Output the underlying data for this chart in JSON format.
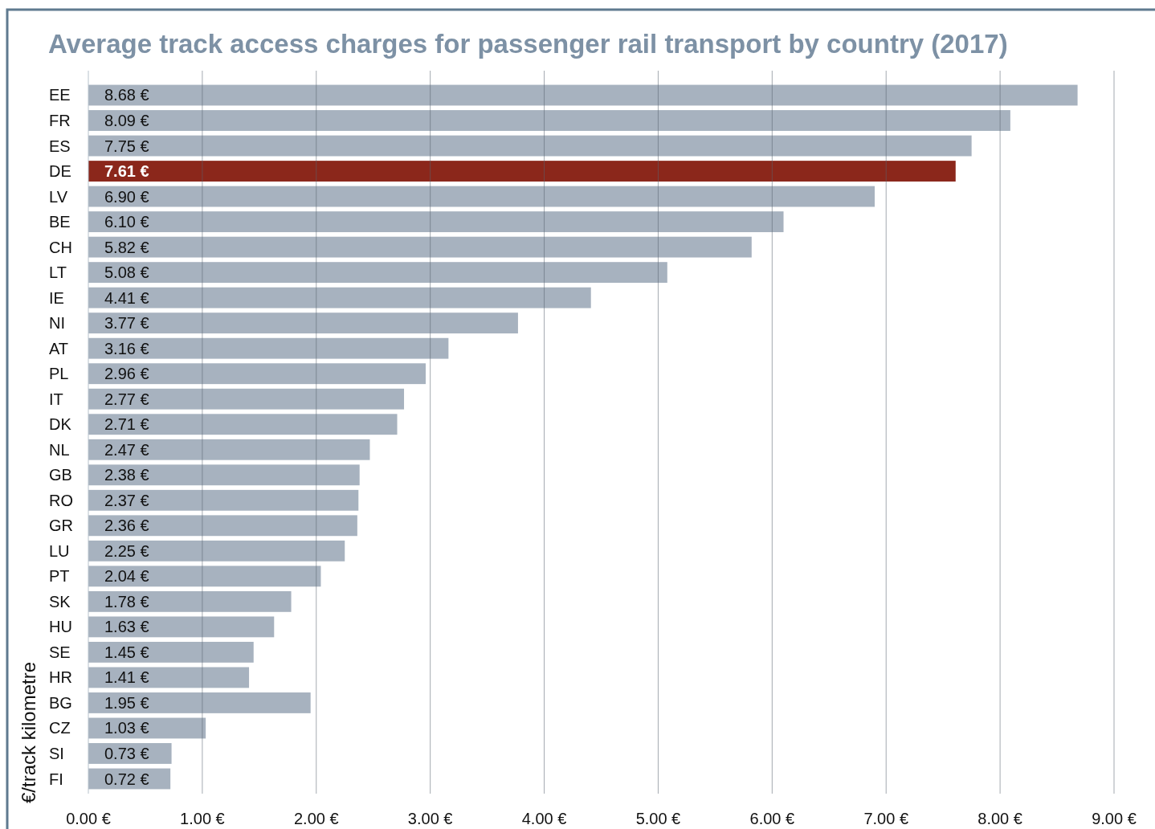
{
  "chart_data": {
    "type": "bar",
    "orientation": "horizontal",
    "title": "Average track access charges for passenger rail transport by country (2017)",
    "ylabel": "€/track kilometre",
    "categories": [
      "EE",
      "FR",
      "ES",
      "DE",
      "LV",
      "BE",
      "CH",
      "LT",
      "IE",
      "NI",
      "AT",
      "PL",
      "IT",
      "DK",
      "NL",
      "GB",
      "RO",
      "GR",
      "LU",
      "PT",
      "SK",
      "HU",
      "SE",
      "HR",
      "BG",
      "CZ",
      "SI",
      "FI"
    ],
    "values": [
      8.68,
      8.09,
      7.75,
      7.61,
      6.9,
      6.1,
      5.82,
      5.08,
      4.41,
      3.77,
      3.16,
      2.96,
      2.77,
      2.71,
      2.47,
      2.38,
      2.37,
      2.36,
      2.25,
      2.04,
      1.78,
      1.63,
      1.45,
      1.41,
      1.95,
      1.03,
      0.73,
      0.72
    ],
    "value_labels": [
      "8.68 €",
      "8.09 €",
      "7.75 €",
      "7.61 €",
      "6.90 €",
      "6.10 €",
      "5.82 €",
      "5.08 €",
      "4.41 €",
      "3.77 €",
      "3.16 €",
      "2.96 €",
      "2.77 €",
      "2.71 €",
      "2.47 €",
      "2.38 €",
      "2.37 €",
      "2.36 €",
      "2.25 €",
      "2.04 €",
      "1.78 €",
      "1.63 €",
      "1.45 €",
      "1.41 €",
      "1.95 €",
      "1.03 €",
      "0.73 €",
      "0.72 €"
    ],
    "colors": [
      "#a7b2bf",
      "#a7b2bf",
      "#a7b2bf",
      "#8b271b",
      "#a7b2bf",
      "#a7b2bf",
      "#a7b2bf",
      "#a7b2bf",
      "#a7b2bf",
      "#a7b2bf",
      "#a7b2bf",
      "#a7b2bf",
      "#a7b2bf",
      "#a7b2bf",
      "#a7b2bf",
      "#a7b2bf",
      "#a7b2bf",
      "#a7b2bf",
      "#a7b2bf",
      "#a7b2bf",
      "#a7b2bf",
      "#a7b2bf",
      "#a7b2bf",
      "#a7b2bf",
      "#a7b2bf",
      "#a7b2bf",
      "#a7b2bf",
      "#a7b2bf"
    ],
    "xlim": [
      0,
      9
    ],
    "xticks": [
      {
        "value": 0,
        "label": "0.00 €"
      },
      {
        "value": 1,
        "label": "1.00 €"
      },
      {
        "value": 2,
        "label": "2.00 €"
      },
      {
        "value": 3,
        "label": "3.00 €"
      },
      {
        "value": 4,
        "label": "4.00 €"
      },
      {
        "value": 5,
        "label": "5.00 €"
      },
      {
        "value": 6,
        "label": "6.00 €"
      },
      {
        "value": 7,
        "label": "7.00 €"
      },
      {
        "value": 8,
        "label": "8.00 €"
      },
      {
        "value": 9,
        "label": "9.00 €"
      }
    ],
    "grid": "x"
  }
}
